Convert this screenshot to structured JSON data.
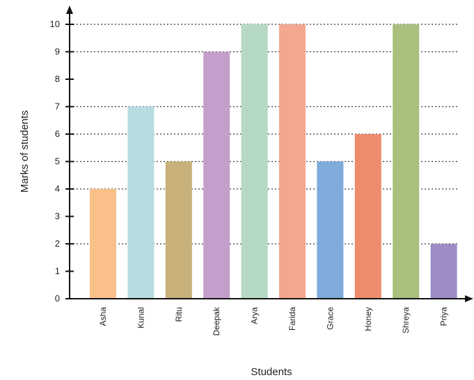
{
  "chart_data": {
    "type": "bar",
    "categories": [
      "Asha",
      "Kunal",
      "Ritu",
      "Deepak",
      "Arya",
      "Farida",
      "Grace",
      "Honey",
      "Shreya",
      "Priya"
    ],
    "values": [
      4,
      7,
      5,
      9,
      10,
      10,
      5,
      6,
      10,
      2
    ],
    "colors": [
      "#f9c08a",
      "#b8dde0",
      "#c8b07a",
      "#c59fcc",
      "#b5d9c2",
      "#f2a78e",
      "#7eabd9",
      "#ee8b6c",
      "#a9bf7d",
      "#9d8cc6"
    ],
    "xlabel": "Students",
    "ylabel": "Marks of students",
    "ylim": [
      0,
      10
    ],
    "yticks": [
      0,
      1,
      2,
      3,
      4,
      5,
      6,
      7,
      8,
      9,
      10
    ],
    "grid": "dotted at bar tops"
  }
}
